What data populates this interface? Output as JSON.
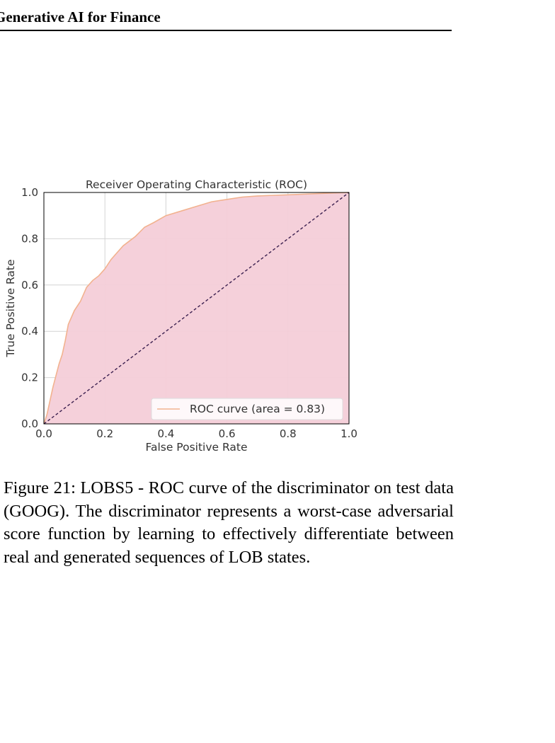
{
  "header": {
    "title": "Generative AI for Finance"
  },
  "caption": {
    "text": "Figure 21: LOBS5 - ROC curve of the discriminator on test data (GOOG). The discriminator represents a worst-case adversarial score function by learning to effectively differentiate between real and generated sequences of LOB states."
  },
  "colors": {
    "fill": "#f4cdd8",
    "roc_line": "#f2b28f",
    "diagonal": "#3b1f4f",
    "grid": "#d4d4d4",
    "axes": "#000000"
  },
  "chart_data": {
    "type": "area",
    "title": "Receiver Operating Characteristic (ROC)",
    "xlabel": "False Positive Rate",
    "ylabel": "True Positive Rate",
    "xlim": [
      0.0,
      1.0
    ],
    "ylim": [
      0.0,
      1.0
    ],
    "xticks": [
      "0.0",
      "0.2",
      "0.4",
      "0.6",
      "0.8",
      "1.0"
    ],
    "yticks": [
      "0.0",
      "0.2",
      "0.4",
      "0.6",
      "0.8",
      "1.0"
    ],
    "grid": true,
    "legend_position": "bottom-right",
    "series": [
      {
        "name": "ROC curve (area = 0.83)",
        "x": [
          0.0,
          0.005,
          0.01,
          0.02,
          0.03,
          0.04,
          0.05,
          0.06,
          0.07,
          0.08,
          0.09,
          0.1,
          0.12,
          0.14,
          0.16,
          0.18,
          0.2,
          0.22,
          0.24,
          0.26,
          0.28,
          0.3,
          0.33,
          0.36,
          0.4,
          0.45,
          0.5,
          0.55,
          0.6,
          0.65,
          0.7,
          0.8,
          0.9,
          1.0
        ],
        "y": [
          0.0,
          0.02,
          0.04,
          0.1,
          0.16,
          0.21,
          0.26,
          0.3,
          0.36,
          0.43,
          0.46,
          0.49,
          0.53,
          0.59,
          0.62,
          0.64,
          0.67,
          0.71,
          0.74,
          0.77,
          0.79,
          0.81,
          0.85,
          0.87,
          0.9,
          0.92,
          0.94,
          0.96,
          0.97,
          0.98,
          0.985,
          0.99,
          0.995,
          1.0
        ]
      }
    ],
    "reference_line": {
      "x": [
        0.0,
        1.0
      ],
      "y": [
        0.0,
        1.0
      ]
    }
  }
}
